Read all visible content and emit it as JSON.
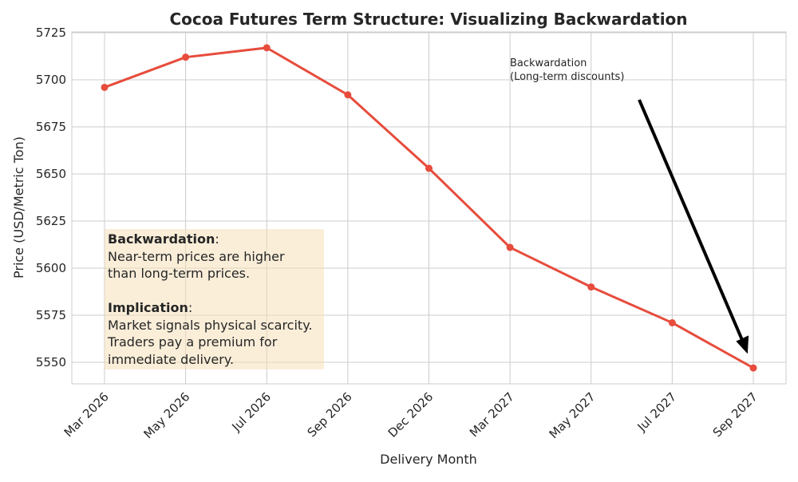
{
  "chart_data": {
    "type": "line",
    "title": "Cocoa Futures Term Structure: Visualizing Backwardation",
    "xlabel": "Delivery Month",
    "ylabel": "Price (USD/Metric Ton)",
    "categories": [
      "Mar 2026",
      "May 2026",
      "Jul 2026",
      "Sep 2026",
      "Dec 2026",
      "Mar 2027",
      "May 2027",
      "Jul 2027",
      "Sep 2027"
    ],
    "values": [
      5696,
      5712,
      5717,
      5692,
      5653,
      5611,
      5590,
      5571,
      5547
    ],
    "ylim": [
      5539,
      5726
    ],
    "yticks": [
      5550,
      5575,
      5600,
      5625,
      5650,
      5675,
      5700,
      5725
    ],
    "grid": true,
    "line_color": "#e74c3c",
    "annotation": {
      "text_line1": "Backwardation",
      "text_line2": "(Long-term discounts)",
      "arrow_color": "#000000"
    },
    "textbox": {
      "heading1": "Backwardation",
      "line1": "Near-term prices are higher",
      "line2": "than long-term prices.",
      "heading2": "Implication",
      "line3": "Market signals physical scarcity.",
      "line4": "Traders pay a premium for",
      "line5": "immediate delivery.",
      "background": "#f5deb3"
    }
  }
}
